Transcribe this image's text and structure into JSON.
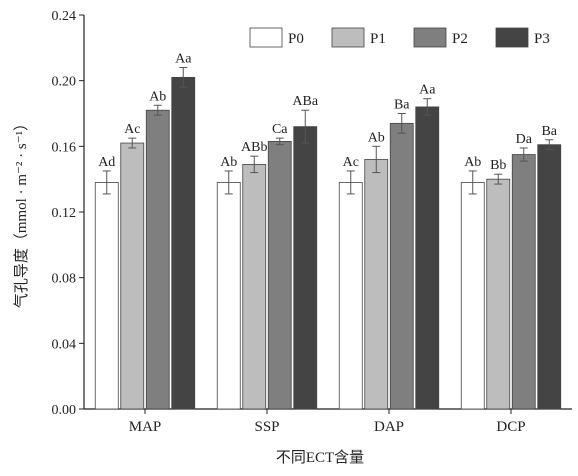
{
  "chart_data": {
    "type": "bar",
    "title": "",
    "xlabel": "不同ECT含量",
    "ylabel": "气孔导度（mmol · m⁻² · s⁻¹）",
    "ylim": [
      0,
      0.24
    ],
    "yticks": [
      "0.00",
      "0.04",
      "0.08",
      "0.12",
      "0.16",
      "0.20",
      "0.24"
    ],
    "categories": [
      "MAP",
      "SSP",
      "DAP",
      "DCP"
    ],
    "legend_position": "top-right",
    "grid": false,
    "series": [
      {
        "name": "P0",
        "color": "#ffffff",
        "values": [
          0.138,
          0.138,
          0.138,
          0.138
        ],
        "errors": [
          0.007,
          0.007,
          0.007,
          0.007
        ],
        "labels": [
          "Ad",
          "Ab",
          "Ac",
          "Ab"
        ]
      },
      {
        "name": "P1",
        "color": "#bdbdbd",
        "values": [
          0.162,
          0.149,
          0.152,
          0.14
        ],
        "errors": [
          0.003,
          0.005,
          0.008,
          0.003
        ],
        "labels": [
          "Ac",
          "ABb",
          "Ab",
          "Bb"
        ]
      },
      {
        "name": "P2",
        "color": "#7f7f7f",
        "values": [
          0.182,
          0.163,
          0.174,
          0.155
        ],
        "errors": [
          0.003,
          0.002,
          0.006,
          0.004
        ],
        "labels": [
          "Ab",
          "Ca",
          "Ba",
          "Da"
        ]
      },
      {
        "name": "P3",
        "color": "#444444",
        "values": [
          0.202,
          0.172,
          0.184,
          0.161
        ],
        "errors": [
          0.006,
          0.01,
          0.005,
          0.003
        ],
        "labels": [
          "Aa",
          "ABa",
          "Aa",
          "Ba"
        ]
      }
    ]
  }
}
